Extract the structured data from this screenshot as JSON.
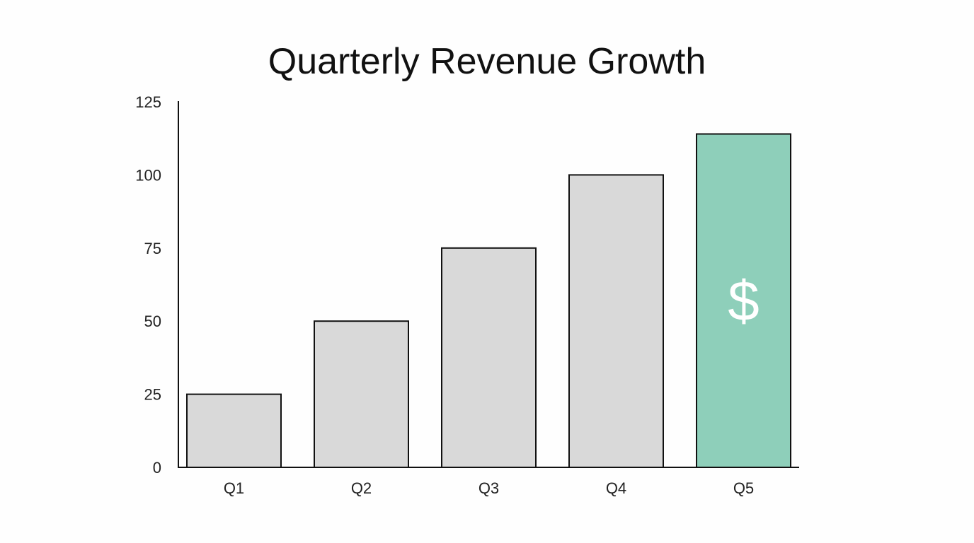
{
  "chart_data": {
    "type": "bar",
    "title": "Quarterly Revenue Growth",
    "xlabel": "",
    "ylabel": "",
    "categories": [
      "Q1",
      "Q2",
      "Q3",
      "Q4",
      "Q5"
    ],
    "values": [
      25,
      50,
      75,
      100,
      114
    ],
    "ylim": [
      0,
      125
    ],
    "yticks": [
      "0",
      "25",
      "50",
      "75",
      "100",
      "125"
    ],
    "grid": false,
    "colors": {
      "default_bar": "#d9d9d9",
      "highlight_bar": "#8ecfba",
      "outline": "#111111"
    },
    "highlight_index": 4,
    "highlight_icon": "dollar-sign-icon",
    "highlight_symbol": "$"
  }
}
